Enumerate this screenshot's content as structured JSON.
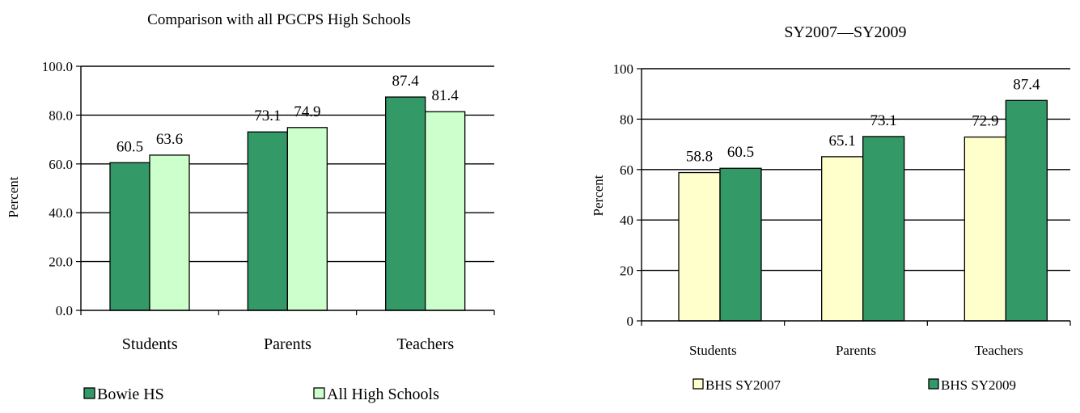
{
  "chart_data": [
    {
      "type": "bar",
      "title": "Comparison with all PGCPS High Schools",
      "ylabel": "Percent",
      "xlabel": "",
      "categories": [
        "Students",
        "Parents",
        "Teachers"
      ],
      "ylim": [
        0,
        100
      ],
      "yticks": [
        "0.0",
        "20.0",
        "40.0",
        "60.0",
        "80.0",
        "100.0"
      ],
      "grid": true,
      "legend_position": "bottom",
      "series": [
        {
          "name": "Bowie HS",
          "values": [
            60.5,
            73.1,
            87.4
          ],
          "labels": [
            "60.5",
            "73.1",
            "87.4"
          ],
          "color": "#339966"
        },
        {
          "name": "All High Schools",
          "values": [
            63.6,
            74.9,
            81.4
          ],
          "labels": [
            "63.6",
            "74.9",
            "81.4"
          ],
          "color": "#CCFFCC"
        }
      ]
    },
    {
      "type": "bar",
      "title": "SY2007—SY2009",
      "ylabel": "Percent",
      "xlabel": "",
      "categories": [
        "Students",
        "Parents",
        "Teachers"
      ],
      "ylim": [
        0,
        100
      ],
      "yticks": [
        "0",
        "20",
        "40",
        "60",
        "80",
        "100"
      ],
      "grid": true,
      "legend_position": "bottom",
      "series": [
        {
          "name": "BHS SY2007",
          "values": [
            58.8,
            65.1,
            72.9
          ],
          "labels": [
            "58.8",
            "65.1",
            "72.9"
          ],
          "color": "#FFFFCC"
        },
        {
          "name": "BHS SY2009",
          "values": [
            60.5,
            73.1,
            87.4
          ],
          "labels": [
            "60.5",
            "73.1",
            "87.4"
          ],
          "color": "#339966"
        }
      ]
    }
  ]
}
